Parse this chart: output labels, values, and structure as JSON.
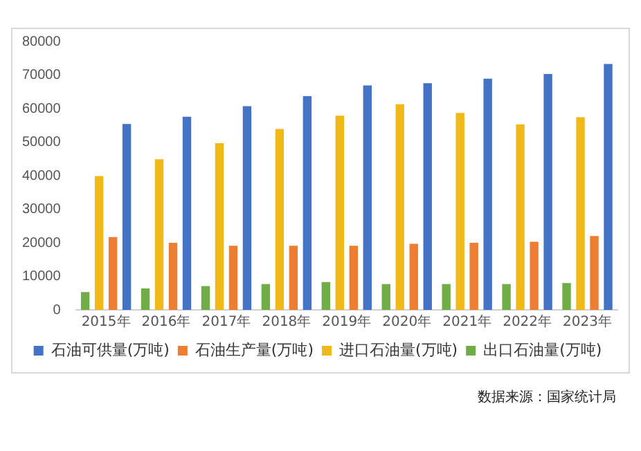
{
  "chart_data": {
    "type": "bar",
    "categories": [
      "2015年",
      "2016年",
      "2017年",
      "2018年",
      "2019年",
      "2020年",
      "2021年",
      "2022年",
      "2023年"
    ],
    "series": [
      {
        "name": "出口石油量(万吨)",
        "color": "#70ad47",
        "values": [
          5300,
          6400,
          7100,
          7700,
          8300,
          7700,
          7700,
          7700,
          8000
        ]
      },
      {
        "name": "进口石油量(万吨)",
        "color": "#f0b819",
        "values": [
          39900,
          44900,
          49700,
          53900,
          57900,
          61300,
          58700,
          55300,
          57400
        ]
      },
      {
        "name": "石油生产量(万吨)",
        "color": "#ed7d31",
        "values": [
          21700,
          20000,
          19100,
          19100,
          19100,
          19700,
          20000,
          20300,
          22000
        ]
      },
      {
        "name": "石油可供量(万吨)",
        "color": "#4472c4",
        "values": [
          55400,
          57600,
          60700,
          63700,
          66900,
          67600,
          68900,
          70300,
          73300
        ]
      }
    ],
    "ylim": [
      0,
      80000
    ],
    "yticks": [
      0,
      10000,
      20000,
      30000,
      40000,
      50000,
      60000,
      70000,
      80000
    ],
    "grid": false,
    "legend": "bottom",
    "annotations": [
      "数据来源：国家统计局"
    ]
  }
}
